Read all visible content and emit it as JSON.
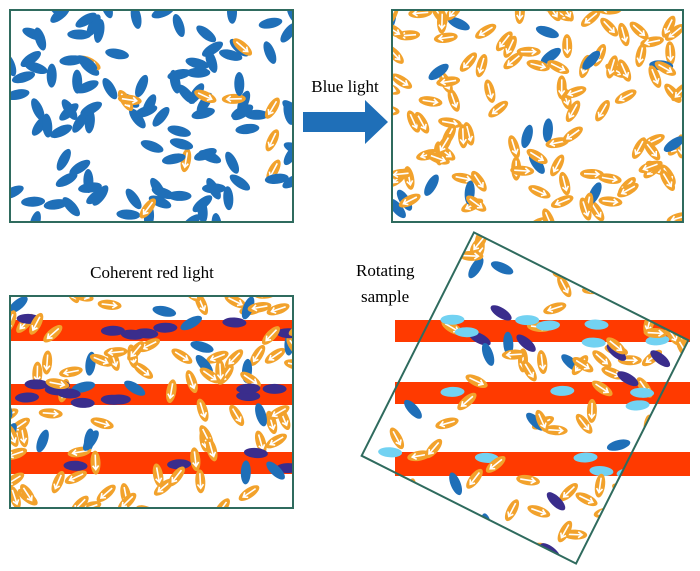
{
  "labels": {
    "blue_light": "Blue light",
    "coherent_red_light": "Coherent red light",
    "rotating_sample": [
      "Rotating",
      "sample"
    ]
  }
}
